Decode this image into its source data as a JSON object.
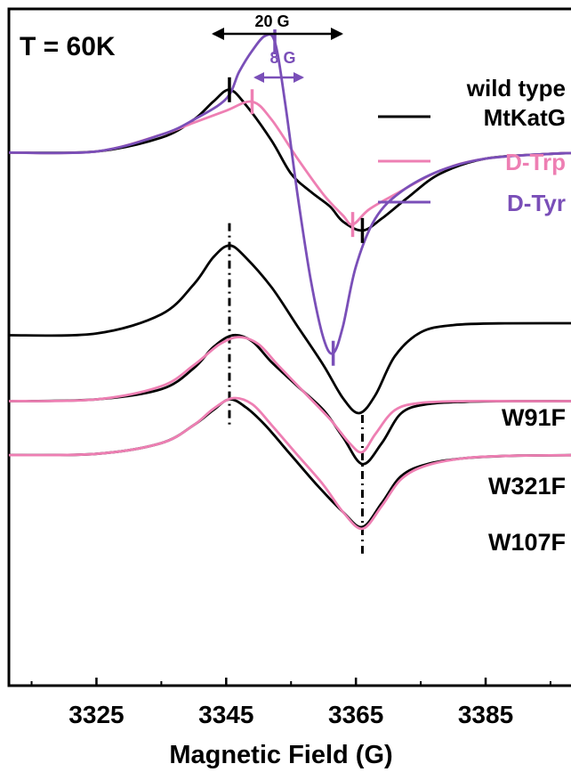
{
  "chart_data": {
    "type": "line",
    "title": "",
    "xlabel": "Magnetic Field (G)",
    "ylabel": "",
    "xlim": [
      3311.5,
      3402
    ],
    "ylim": [
      -5.4,
      5.9
    ],
    "x_ticks": [
      3325,
      3345,
      3365,
      3385
    ],
    "grid": false,
    "legend": {
      "header": "wild type",
      "placement": "top-right",
      "entries": [
        {
          "label": "MtKatG",
          "color": "#000000"
        },
        {
          "label": "D-Trp",
          "color": "#ee7fb3"
        },
        {
          "label": "D-Tyr",
          "color": "#7a4fb8"
        }
      ]
    },
    "annotations": {
      "temperature": "T = 60K",
      "width_20": "20 G",
      "width_8": "8 G",
      "vertical_guides_x": [
        3345.5,
        3366
      ]
    },
    "series": [
      {
        "name": "MtKatG",
        "group": "wild type",
        "color": "#000000",
        "x": [
          3311.5,
          3325,
          3335,
          3340,
          3343,
          3345.5,
          3348,
          3352,
          3355,
          3358,
          3361,
          3363,
          3366,
          3369,
          3373,
          3378,
          3385,
          3395,
          3402
        ],
        "y": [
          3.5,
          3.52,
          3.75,
          4.05,
          4.35,
          4.55,
          4.3,
          3.7,
          3.15,
          2.85,
          2.6,
          2.35,
          2.2,
          2.4,
          2.75,
          3.15,
          3.4,
          3.48,
          3.5
        ]
      },
      {
        "name": "D-Trp",
        "group": "wild type",
        "color": "#ee7fb3",
        "x": [
          3311.5,
          3325,
          3335,
          3340,
          3345,
          3349,
          3352,
          3356,
          3360,
          3363,
          3364.5,
          3367,
          3371,
          3378,
          3385,
          3395,
          3402
        ],
        "y": [
          3.5,
          3.52,
          3.8,
          4.0,
          4.2,
          4.35,
          4.05,
          3.4,
          2.8,
          2.45,
          2.3,
          2.55,
          2.8,
          3.2,
          3.4,
          3.48,
          3.5
        ]
      },
      {
        "name": "D-Tyr",
        "group": "wild type",
        "color": "#7a4fb8",
        "x": [
          3311.5,
          3325,
          3335,
          3340,
          3345,
          3347,
          3349,
          3351,
          3352.5,
          3354,
          3356,
          3358,
          3360,
          3361.5,
          3363,
          3365,
          3368,
          3372,
          3378,
          3385,
          3395,
          3402
        ],
        "y": [
          3.5,
          3.52,
          3.8,
          4.05,
          4.4,
          4.85,
          5.2,
          5.45,
          5.35,
          4.4,
          2.8,
          1.4,
          0.4,
          0.15,
          0.6,
          1.6,
          2.4,
          2.85,
          3.2,
          3.4,
          3.48,
          3.5
        ]
      },
      {
        "name": "W91F",
        "color": "#000000",
        "x": [
          3311.5,
          3325,
          3335,
          3340,
          3343,
          3345.5,
          3348,
          3352,
          3356,
          3360,
          3363,
          3365.5,
          3368,
          3371,
          3375,
          3380,
          3388,
          3402
        ],
        "y": [
          0.45,
          0.48,
          0.8,
          1.3,
          1.75,
          1.95,
          1.75,
          1.25,
          0.6,
          -0.05,
          -0.6,
          -0.85,
          -0.55,
          0.1,
          0.5,
          0.62,
          0.65,
          0.65
        ]
      },
      {
        "name": "W321F",
        "color": "#000000",
        "x": [
          3311.5,
          3325,
          3335,
          3340,
          3343,
          3346,
          3349,
          3352,
          3356,
          3360,
          3363,
          3366,
          3369,
          3372,
          3376,
          3382,
          3390,
          3402
        ],
        "y": [
          -0.65,
          -0.62,
          -0.45,
          -0.1,
          0.25,
          0.45,
          0.35,
          0.0,
          -0.4,
          -0.8,
          -1.25,
          -1.7,
          -1.35,
          -0.85,
          -0.7,
          -0.66,
          -0.65,
          -0.65
        ]
      },
      {
        "name": "W321F D-Trp",
        "color": "#ee7fb3",
        "x": [
          3311.5,
          3325,
          3335,
          3340,
          3344,
          3347,
          3350,
          3353,
          3357,
          3361,
          3364,
          3366,
          3368,
          3371,
          3375,
          3382,
          3390,
          3402
        ],
        "y": [
          -0.65,
          -0.62,
          -0.4,
          -0.05,
          0.3,
          0.42,
          0.3,
          -0.05,
          -0.5,
          -0.95,
          -1.35,
          -1.5,
          -1.2,
          -0.8,
          -0.68,
          -0.65,
          -0.65,
          -0.65
        ]
      },
      {
        "name": "W107F",
        "color": "#000000",
        "x": [
          3311.5,
          3325,
          3335,
          3340,
          3343,
          3345.5,
          3348,
          3351,
          3355,
          3359,
          3363,
          3366,
          3369,
          3372,
          3376,
          3382,
          3390,
          3402
        ],
        "y": [
          -1.55,
          -1.53,
          -1.35,
          -1.05,
          -0.8,
          -0.62,
          -0.75,
          -1.05,
          -1.55,
          -2.05,
          -2.5,
          -2.75,
          -2.35,
          -1.9,
          -1.7,
          -1.6,
          -1.56,
          -1.55
        ]
      },
      {
        "name": "W107F D-Trp",
        "color": "#ee7fb3",
        "x": [
          3311.5,
          3325,
          3335,
          3340,
          3343,
          3346,
          3349,
          3352,
          3356,
          3360,
          3363,
          3366,
          3369,
          3372,
          3376,
          3382,
          3390,
          3402
        ],
        "y": [
          -1.55,
          -1.53,
          -1.35,
          -1.05,
          -0.78,
          -0.6,
          -0.7,
          -1.05,
          -1.55,
          -2.05,
          -2.5,
          -2.78,
          -2.4,
          -1.95,
          -1.72,
          -1.6,
          -1.56,
          -1.55
        ]
      }
    ],
    "series_labels": [
      {
        "text": "W91F",
        "anchor_series": "W91F"
      },
      {
        "text": "W321F",
        "anchor_series": "W321F"
      },
      {
        "text": "W107F",
        "anchor_series": "W107F"
      }
    ],
    "peak_markers": [
      {
        "series": "MtKatG",
        "x": [
          3345.5,
          3366
        ]
      },
      {
        "series": "D-Trp",
        "x": [
          3349,
          3364.5
        ]
      },
      {
        "series": "D-Tyr",
        "x": [
          3352.5,
          3361.5
        ]
      }
    ]
  }
}
